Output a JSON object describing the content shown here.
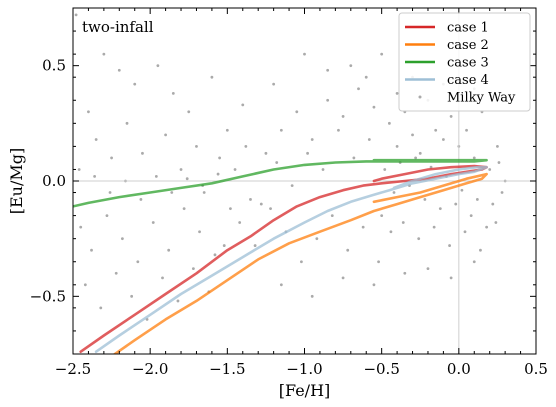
{
  "chart_data": {
    "type": "line",
    "panel_label": "two-infall",
    "xlabel": "[Fe/H]",
    "ylabel": "[Eu/Mg]",
    "xlim": [
      -2.5,
      0.5
    ],
    "ylim": [
      -0.75,
      0.75
    ],
    "x_ticks": [
      -2.5,
      -2.0,
      -1.5,
      -1.0,
      -0.5,
      0.0,
      0.5
    ],
    "x_tick_labels": [
      "−2.5",
      "−2.0",
      "−1.5",
      "−1.0",
      "−0.5",
      "0.0",
      "0.5"
    ],
    "y_ticks": [
      -0.5,
      0.0,
      0.5
    ],
    "y_tick_labels": [
      "−0.5",
      "0.0",
      "0.5"
    ],
    "reference_lines": {
      "x": 0.0,
      "y": 0.0
    },
    "legend_position": "top-right",
    "grid": false,
    "series": [
      {
        "name": "case 1",
        "color": "#d62728",
        "x": [
          -2.45,
          -2.3,
          -2.1,
          -1.9,
          -1.7,
          -1.5,
          -1.35,
          -1.2,
          -1.05,
          -0.9,
          -0.75,
          -0.62,
          -0.5,
          -0.35,
          -0.2,
          -0.05,
          0.05,
          0.15,
          0.18,
          0.1,
          -0.05,
          -0.2,
          -0.35,
          -0.5,
          -0.55
        ],
        "y": [
          -0.74,
          -0.67,
          -0.58,
          -0.49,
          -0.4,
          -0.3,
          -0.24,
          -0.17,
          -0.11,
          -0.07,
          -0.04,
          -0.02,
          -0.01,
          0.0,
          0.01,
          0.03,
          0.04,
          0.05,
          0.06,
          0.065,
          0.06,
          0.05,
          0.03,
          0.01,
          0.0
        ]
      },
      {
        "name": "case 2",
        "color": "#ff7f0e",
        "x": [
          -2.25,
          -2.1,
          -1.9,
          -1.7,
          -1.5,
          -1.3,
          -1.1,
          -0.9,
          -0.7,
          -0.55,
          -0.4,
          -0.25,
          -0.1,
          0.05,
          0.15,
          0.18,
          0.05,
          -0.1,
          -0.25,
          -0.4,
          -0.55
        ],
        "y": [
          -0.76,
          -0.69,
          -0.6,
          -0.52,
          -0.43,
          -0.34,
          -0.27,
          -0.22,
          -0.17,
          -0.13,
          -0.1,
          -0.07,
          -0.04,
          -0.01,
          0.01,
          0.03,
          0.01,
          -0.02,
          -0.05,
          -0.07,
          -0.09
        ]
      },
      {
        "name": "case 3",
        "color": "#2ca02c",
        "x": [
          -2.5,
          -2.4,
          -2.2,
          -2.0,
          -1.8,
          -1.6,
          -1.4,
          -1.2,
          -1.0,
          -0.8,
          -0.6,
          -0.4,
          -0.2,
          0.0,
          0.1,
          0.18,
          0.1,
          0.0,
          -0.2,
          -0.4,
          -0.55
        ],
        "y": [
          -0.11,
          -0.095,
          -0.07,
          -0.05,
          -0.03,
          -0.01,
          0.02,
          0.05,
          0.07,
          0.08,
          0.085,
          0.085,
          0.085,
          0.085,
          0.085,
          0.09,
          0.09,
          0.09,
          0.09,
          0.09,
          0.09
        ]
      },
      {
        "name": "case 4",
        "color": "#9ebfd6",
        "x": [
          -2.35,
          -2.2,
          -2.0,
          -1.8,
          -1.6,
          -1.4,
          -1.2,
          -1.0,
          -0.85,
          -0.7,
          -0.55,
          -0.45,
          -0.3,
          -0.15,
          0.0,
          0.1,
          0.18,
          0.12,
          0.0,
          -0.15,
          -0.3,
          -0.42
        ],
        "y": [
          -0.74,
          -0.67,
          -0.58,
          -0.49,
          -0.41,
          -0.33,
          -0.25,
          -0.18,
          -0.13,
          -0.09,
          -0.06,
          -0.04,
          -0.01,
          0.01,
          0.03,
          0.04,
          0.06,
          0.06,
          0.05,
          0.03,
          0.0,
          -0.03
        ]
      }
    ],
    "scatter": {
      "name": "Milky Way",
      "color": "#aaaaaa",
      "points": [
        [
          -2.48,
          0.72
        ],
        [
          -2.3,
          0.55
        ],
        [
          -2.2,
          0.48
        ],
        [
          -2.1,
          0.42
        ],
        [
          -1.95,
          0.5
        ],
        [
          -1.85,
          0.38
        ],
        [
          -1.75,
          0.3
        ],
        [
          -1.6,
          0.45
        ],
        [
          -1.5,
          0.22
        ],
        [
          -1.4,
          0.33
        ],
        [
          -2.4,
          0.3
        ],
        [
          -2.35,
          0.18
        ],
        [
          -2.25,
          0.1
        ],
        [
          -2.15,
          0.25
        ],
        [
          -2.05,
          0.12
        ],
        [
          -1.9,
          0.2
        ],
        [
          -1.8,
          0.05
        ],
        [
          -1.7,
          0.15
        ],
        [
          -1.65,
          -0.05
        ],
        [
          -1.55,
          0.1
        ],
        [
          -2.45,
          -0.2
        ],
        [
          -2.38,
          -0.3
        ],
        [
          -2.28,
          -0.15
        ],
        [
          -2.18,
          -0.25
        ],
        [
          -2.08,
          -0.35
        ],
        [
          -1.98,
          -0.18
        ],
        [
          -1.88,
          -0.3
        ],
        [
          -1.78,
          -0.12
        ],
        [
          -1.68,
          -0.22
        ],
        [
          -1.58,
          -0.32
        ],
        [
          -2.42,
          -0.45
        ],
        [
          -2.32,
          -0.55
        ],
        [
          -2.22,
          -0.4
        ],
        [
          -2.12,
          -0.5
        ],
        [
          -2.02,
          -0.6
        ],
        [
          -1.92,
          -0.42
        ],
        [
          -1.82,
          -0.52
        ],
        [
          -1.72,
          -0.38
        ],
        [
          -1.62,
          -0.48
        ],
        [
          -1.52,
          -0.28
        ],
        [
          -1.45,
          0.05
        ],
        [
          -1.35,
          -0.08
        ],
        [
          -1.25,
          0.12
        ],
        [
          -1.15,
          0.22
        ],
        [
          -1.05,
          0.3
        ],
        [
          -0.95,
          0.18
        ],
        [
          -0.85,
          0.35
        ],
        [
          -0.75,
          0.28
        ],
        [
          -0.65,
          0.4
        ],
        [
          -0.55,
          0.32
        ],
        [
          -1.42,
          -0.18
        ],
        [
          -1.32,
          -0.28
        ],
        [
          -1.22,
          -0.12
        ],
        [
          -1.12,
          -0.22
        ],
        [
          -1.02,
          -0.35
        ],
        [
          -0.92,
          -0.25
        ],
        [
          -0.82,
          -0.15
        ],
        [
          -0.72,
          -0.3
        ],
        [
          -0.62,
          -0.2
        ],
        [
          -0.52,
          -0.35
        ],
        [
          -0.45,
          0.25
        ],
        [
          -0.4,
          0.15
        ],
        [
          -0.35,
          0.3
        ],
        [
          -0.3,
          0.2
        ],
        [
          -0.25,
          0.12
        ],
        [
          -0.2,
          0.35
        ],
        [
          -0.15,
          0.22
        ],
        [
          -0.1,
          0.18
        ],
        [
          -0.05,
          0.28
        ],
        [
          0.0,
          0.15
        ],
        [
          0.05,
          0.22
        ],
        [
          0.1,
          0.1
        ],
        [
          0.15,
          0.3
        ],
        [
          0.2,
          0.05
        ],
        [
          0.25,
          0.15
        ],
        [
          -0.48,
          0.05
        ],
        [
          -0.42,
          -0.05
        ],
        [
          -0.38,
          0.08
        ],
        [
          -0.32,
          -0.02
        ],
        [
          -0.28,
          0.1
        ],
        [
          -0.22,
          -0.08
        ],
        [
          -0.18,
          0.06
        ],
        [
          -0.12,
          -0.12
        ],
        [
          -0.08,
          0.02
        ],
        [
          -0.02,
          -0.1
        ],
        [
          0.02,
          -0.04
        ],
        [
          0.08,
          -0.15
        ],
        [
          0.12,
          -0.08
        ],
        [
          0.18,
          -0.2
        ],
        [
          0.22,
          -0.1
        ],
        [
          -0.5,
          -0.15
        ],
        [
          -0.44,
          -0.22
        ],
        [
          -0.36,
          -0.18
        ],
        [
          -0.26,
          -0.25
        ],
        [
          -0.16,
          -0.2
        ],
        [
          -0.06,
          -0.28
        ],
        [
          0.04,
          -0.22
        ],
        [
          0.14,
          -0.3
        ],
        [
          0.24,
          -0.18
        ],
        [
          0.28,
          -0.05
        ],
        [
          -0.58,
          0.18
        ],
        [
          -0.68,
          0.1
        ],
        [
          -0.78,
          0.22
        ],
        [
          -0.88,
          0.05
        ],
        [
          -0.98,
          0.12
        ],
        [
          -1.08,
          -0.02
        ],
        [
          -1.18,
          0.08
        ],
        [
          -1.28,
          -0.1
        ],
        [
          -1.38,
          0.15
        ],
        [
          -1.48,
          -0.12
        ],
        [
          -0.7,
          0.5
        ],
        [
          -0.6,
          0.45
        ],
        [
          -0.5,
          0.55
        ],
        [
          -0.3,
          0.45
        ],
        [
          -0.1,
          0.42
        ],
        [
          0.1,
          0.4
        ],
        [
          -0.85,
          0.48
        ],
        [
          -1.0,
          0.55
        ],
        [
          -1.2,
          0.42
        ],
        [
          -0.4,
          0.38
        ],
        [
          -2.46,
          0.05
        ],
        [
          -2.36,
          0.02
        ],
        [
          -2.26,
          -0.05
        ],
        [
          -2.16,
          0.0
        ],
        [
          -2.06,
          -0.08
        ],
        [
          -1.96,
          0.02
        ],
        [
          -1.86,
          -0.05
        ],
        [
          -1.76,
          0.01
        ],
        [
          -1.66,
          -0.02
        ],
        [
          -1.56,
          0.03
        ],
        [
          -0.2,
          -0.38
        ],
        [
          -0.05,
          -0.42
        ],
        [
          0.1,
          -0.35
        ],
        [
          -0.35,
          -0.4
        ],
        [
          -0.55,
          -0.45
        ],
        [
          -0.75,
          -0.42
        ],
        [
          -0.95,
          -0.5
        ],
        [
          -1.15,
          -0.45
        ],
        [
          0.3,
          0.0
        ],
        [
          0.26,
          0.08
        ]
      ]
    }
  }
}
